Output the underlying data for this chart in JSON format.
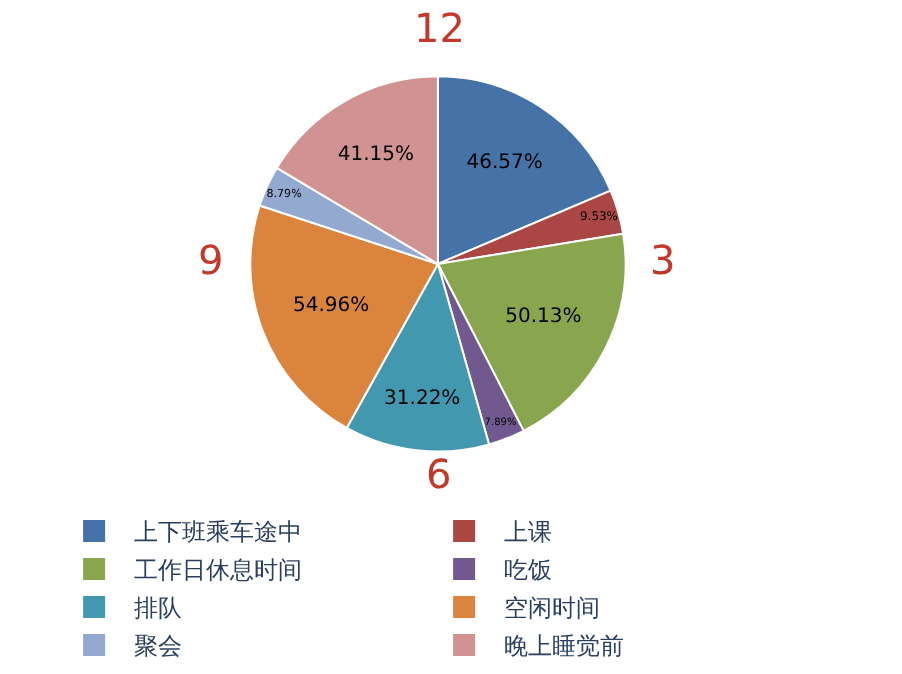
{
  "chart_data": {
    "type": "pie",
    "categories": [
      "上下班乘车途中",
      "上课",
      "工作日休息时间",
      "吃饭",
      "排队",
      "空闲时间",
      "聚会",
      "晚上睡觉前"
    ],
    "values": [
      46.57,
      9.53,
      50.13,
      7.89,
      31.22,
      54.96,
      8.79,
      41.15
    ],
    "value_labels": [
      "46.57%",
      "9.53%",
      "50.13%",
      "7.89%",
      "31.22%",
      "54.96%",
      "8.79%",
      "41.15%"
    ],
    "colors": [
      "#4572a7",
      "#aa4643",
      "#89a54e",
      "#71588f",
      "#4198af",
      "#db843d",
      "#93a9cf",
      "#d19392"
    ],
    "annotations": [
      "12",
      "3",
      "6",
      "9"
    ],
    "legend": "bottom"
  }
}
